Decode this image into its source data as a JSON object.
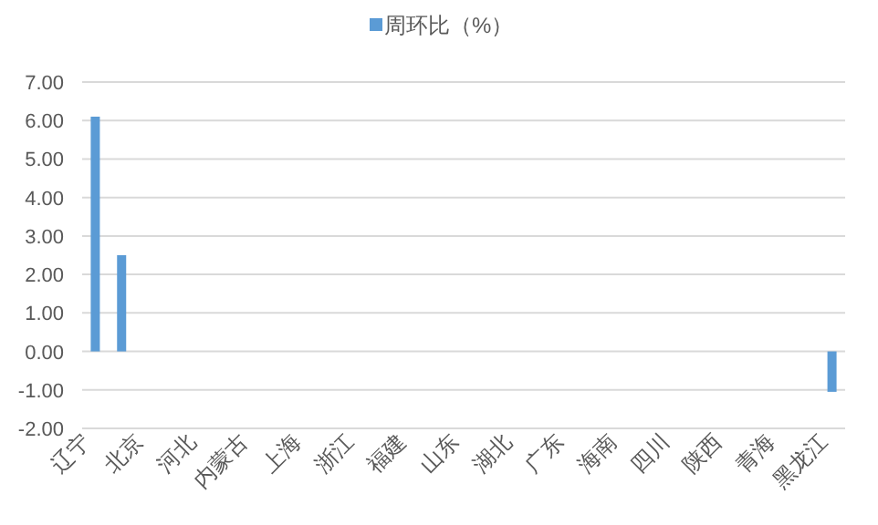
{
  "chart_data": {
    "type": "bar",
    "categories": [
      "辽宁",
      null,
      "北京",
      null,
      "河北",
      null,
      "内蒙古",
      null,
      "上海",
      null,
      "浙江",
      null,
      "福建",
      null,
      "山东",
      null,
      "湖北",
      null,
      "广东",
      null,
      "海南",
      null,
      "四川",
      null,
      "陕西",
      null,
      "青海",
      null,
      "黑龙江"
    ],
    "series": [
      {
        "name": "周环比（%）",
        "color": "#5b9bd5",
        "values": [
          6.1,
          2.5,
          null,
          null,
          null,
          null,
          null,
          null,
          null,
          null,
          null,
          null,
          null,
          null,
          null,
          null,
          null,
          null,
          null,
          null,
          null,
          null,
          null,
          null,
          null,
          null,
          null,
          null,
          -1.05
        ]
      }
    ],
    "ylim": [
      -2,
      7
    ],
    "yticks": [
      {
        "value": 7,
        "label": "7.00"
      },
      {
        "value": 6,
        "label": "6.00"
      },
      {
        "value": 5,
        "label": "5.00"
      },
      {
        "value": 4,
        "label": "4.00"
      },
      {
        "value": 3,
        "label": "3.00"
      },
      {
        "value": 2,
        "label": "2.00"
      },
      {
        "value": 1,
        "label": "1.00"
      },
      {
        "value": 0,
        "label": "0.00"
      },
      {
        "value": -1,
        "label": "-1.00"
      },
      {
        "value": -2,
        "label": "-2.00"
      }
    ],
    "grid": "y",
    "legend": "top"
  }
}
